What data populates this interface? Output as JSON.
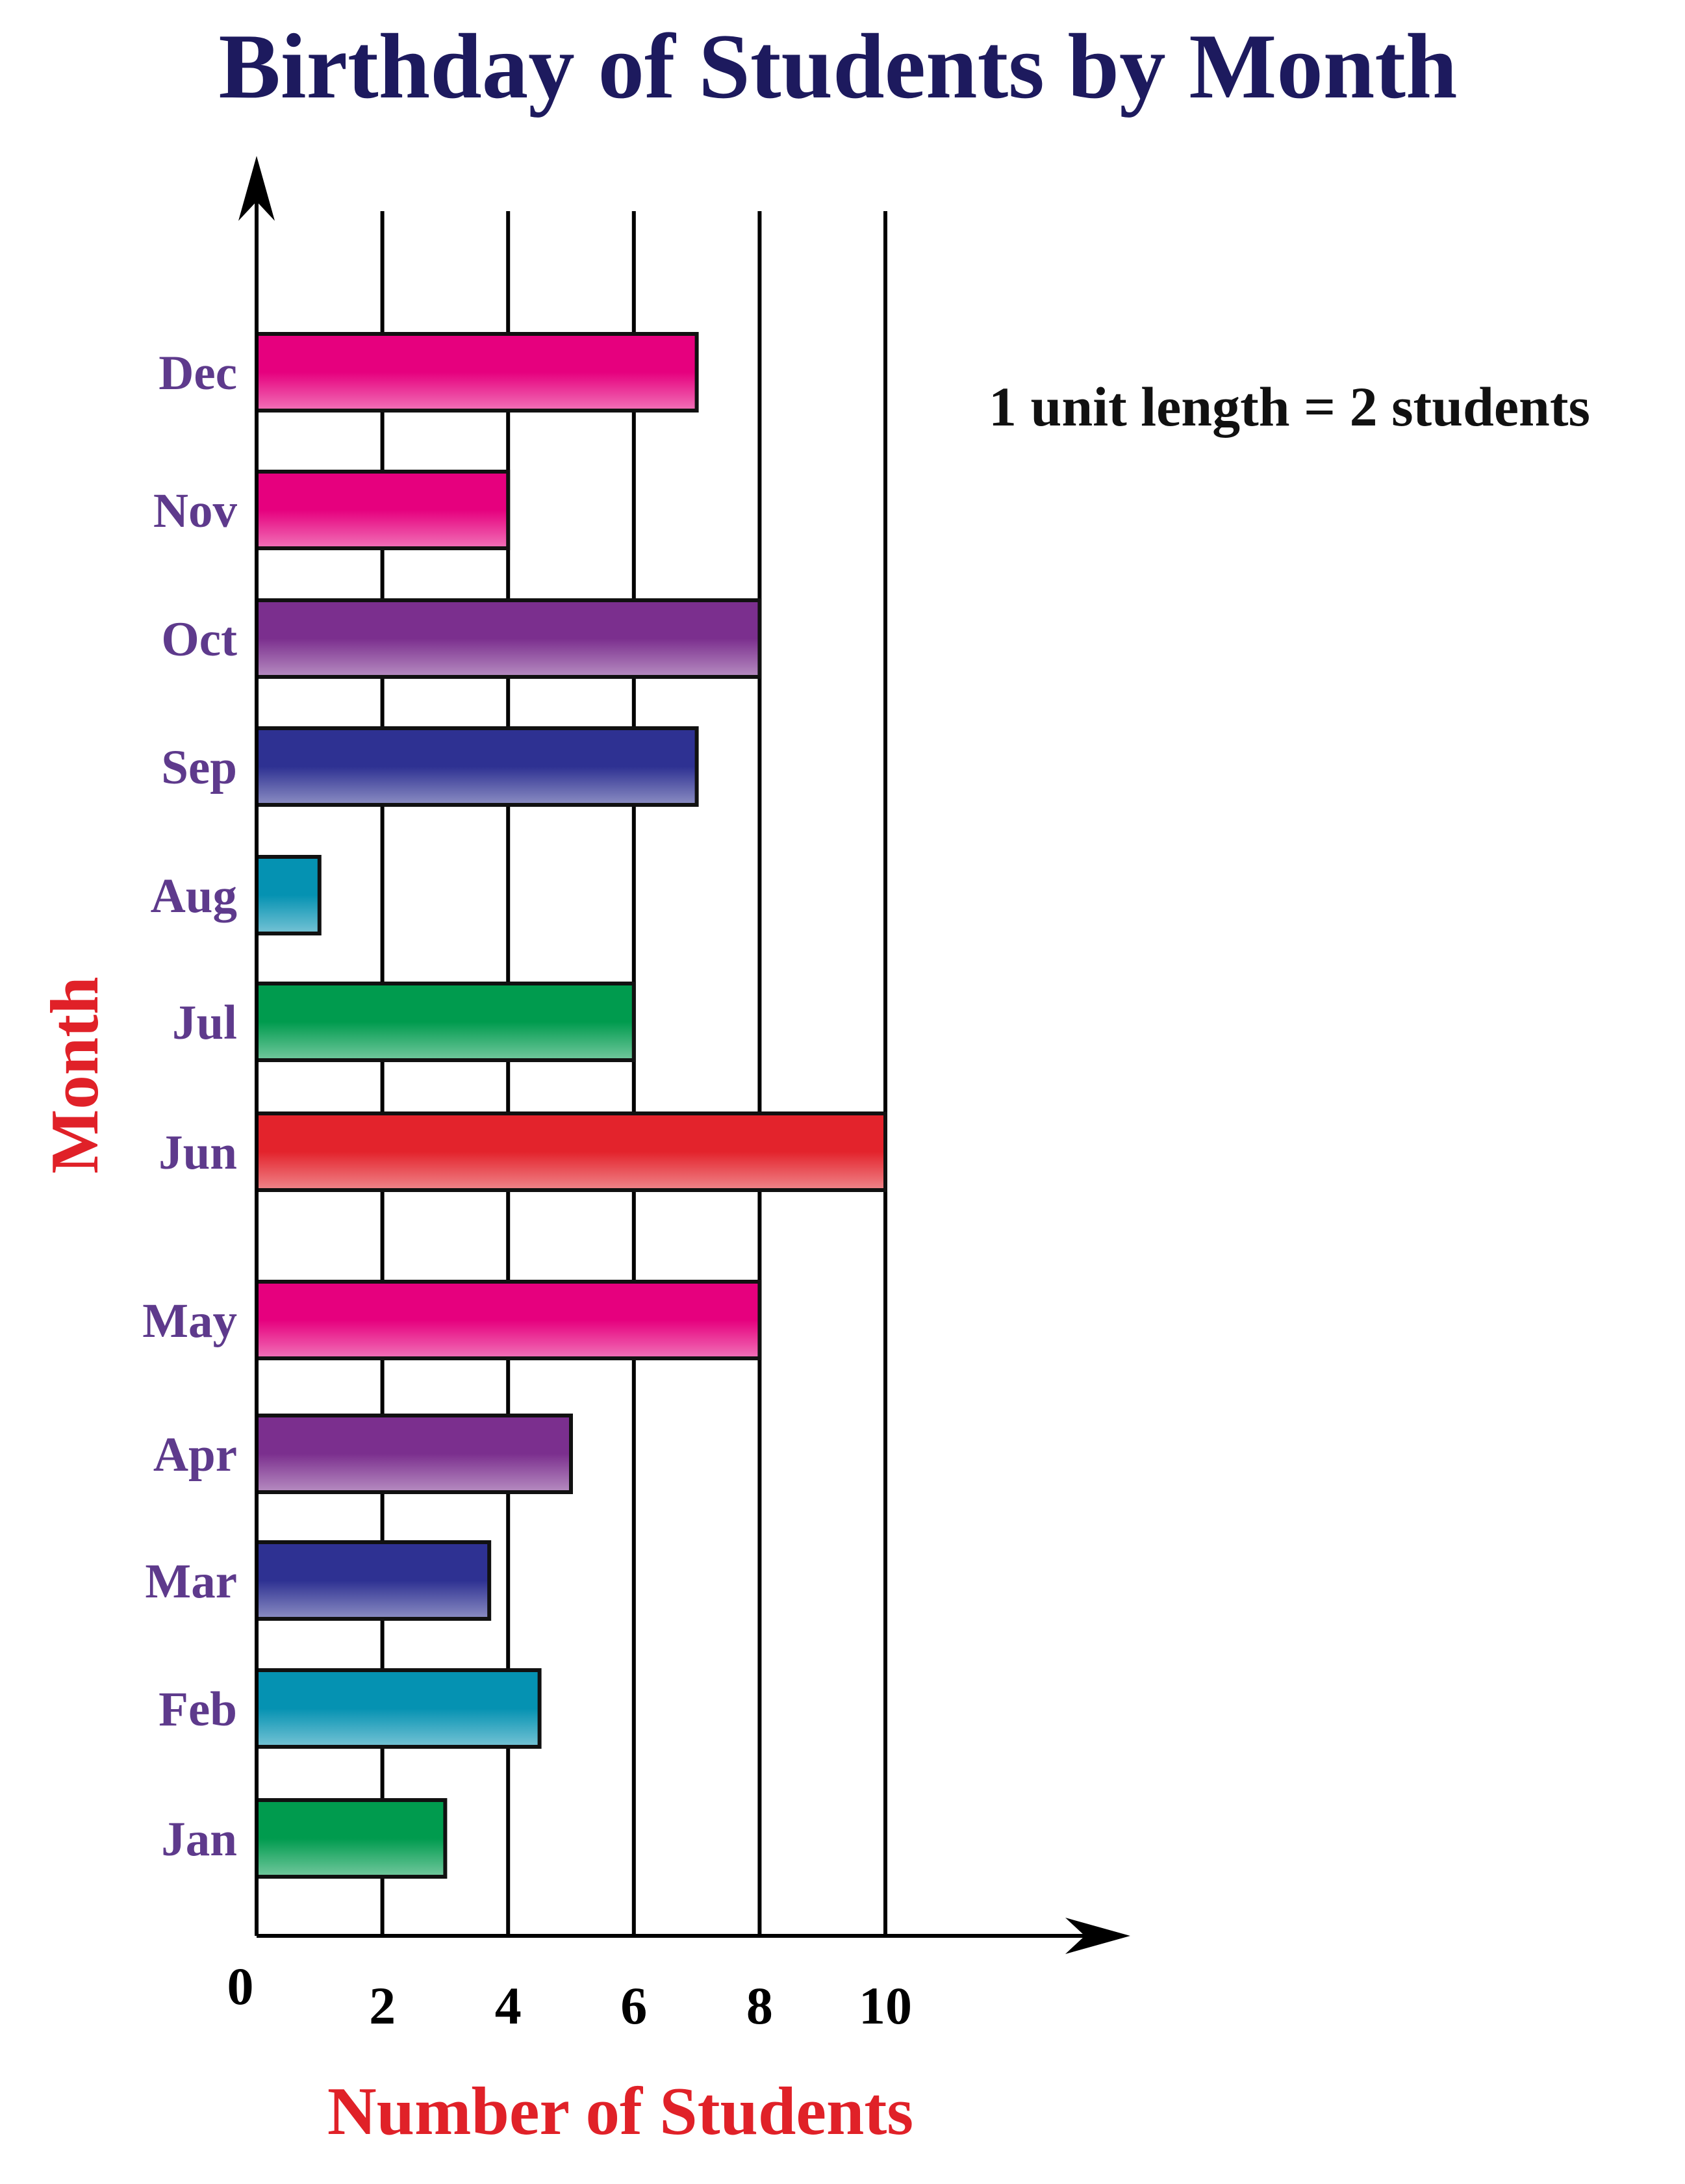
{
  "chart_data": {
    "type": "bar",
    "orientation": "horizontal",
    "title": "Birthday of Students by Month",
    "xlabel": "Number of Students",
    "ylabel": "Month",
    "note": "1 unit length = 2 students",
    "categories": [
      "Jan",
      "Feb",
      "Mar",
      "Apr",
      "May",
      "Jun",
      "Jul",
      "Aug",
      "Sep",
      "Oct",
      "Nov",
      "Dec"
    ],
    "values": [
      3,
      4.5,
      3.7,
      5,
      8,
      10,
      6,
      1,
      7,
      8,
      4,
      7
    ],
    "bar_colors": [
      "#009b4e",
      "#0592b2",
      "#2e3192",
      "#7b2f8e",
      "#e6007e",
      "#e3232c",
      "#009b4e",
      "#0592b2",
      "#2e3192",
      "#7b2f8e",
      "#e6007e",
      "#e6007e"
    ],
    "xticks": [
      "0",
      "2",
      "4",
      "6",
      "8",
      "10"
    ],
    "xlim": [
      0,
      10
    ],
    "grid": true
  }
}
